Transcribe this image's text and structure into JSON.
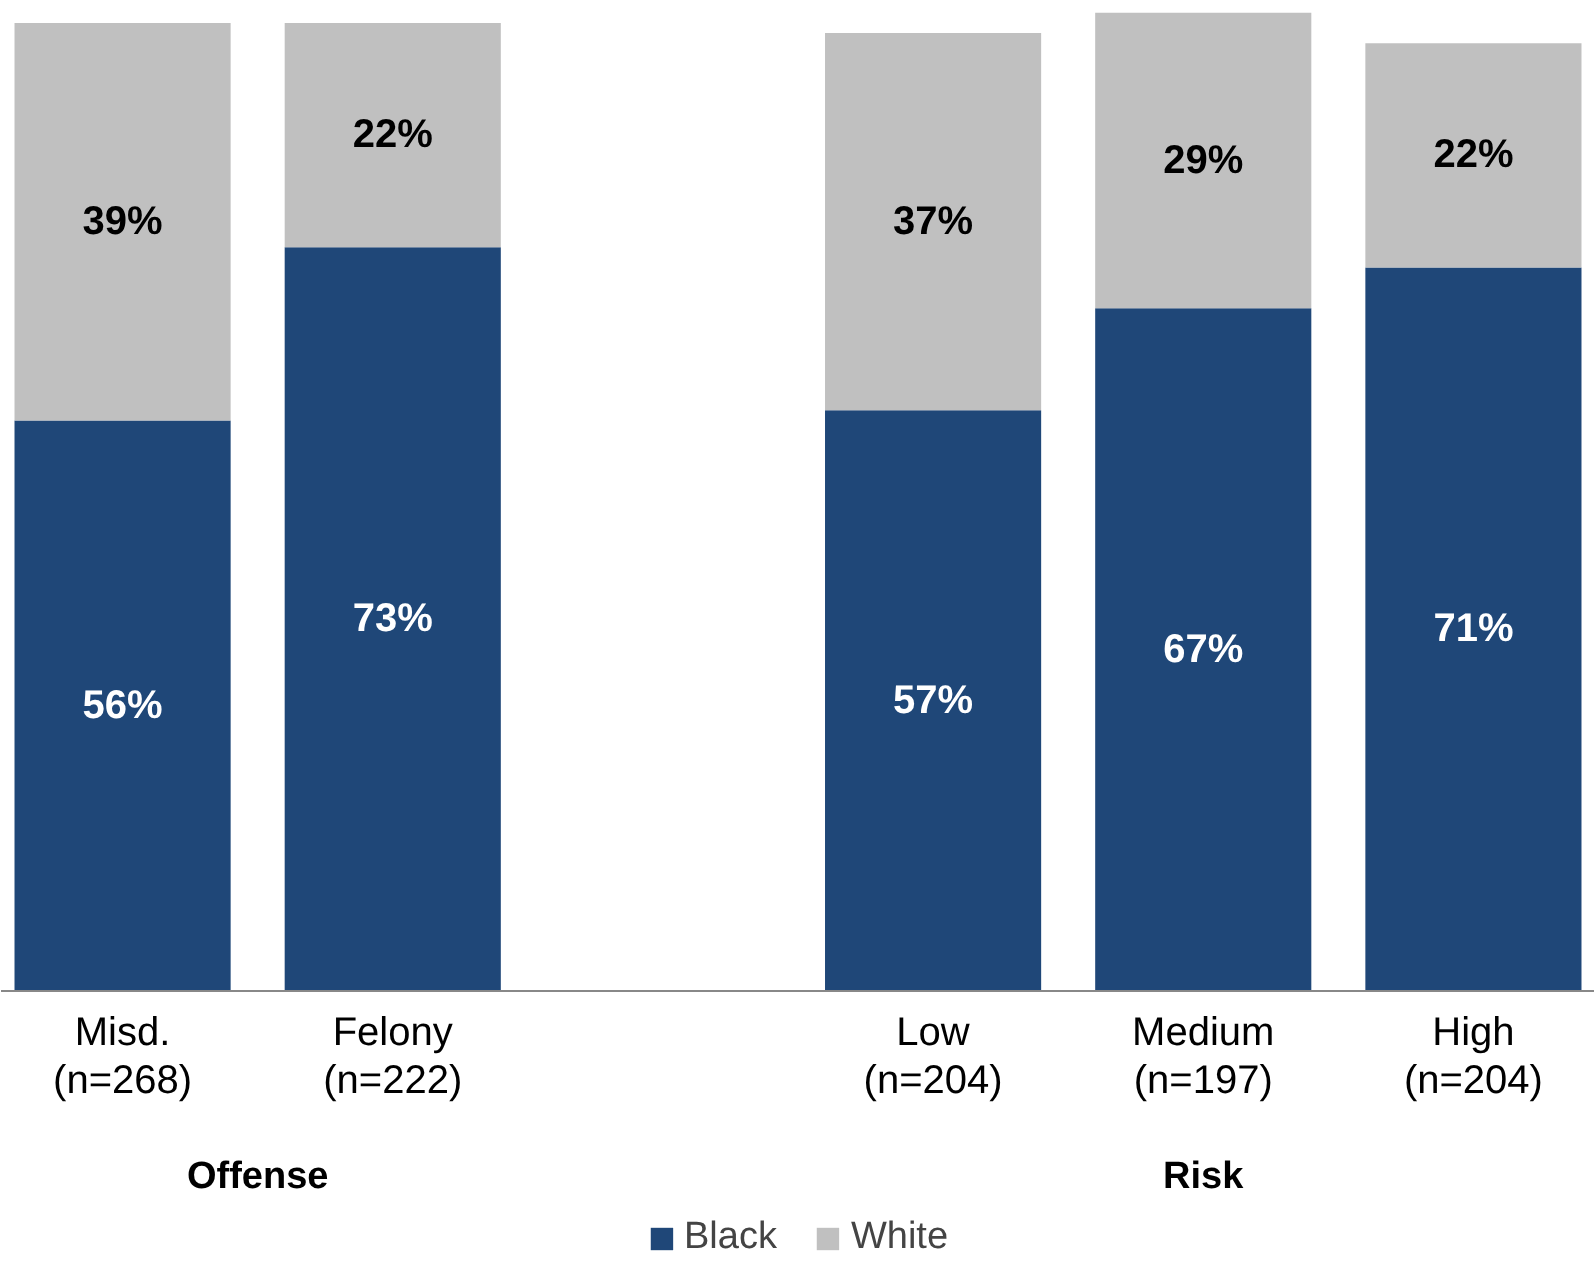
{
  "chart_data": {
    "type": "bar",
    "stacked": true,
    "legend": "bottom",
    "grid": false,
    "categories": [
      "Misd.\n(n=268)",
      "Felony\n(n=222)",
      null,
      "Low\n(n=204)",
      "Medium\n(n=197)",
      "High\n(n=204)"
    ],
    "series": [
      {
        "name": "Black",
        "color": "#1f4778",
        "values": [
          56,
          73,
          null,
          57,
          67,
          71
        ],
        "value_labels": [
          "56%",
          "73%",
          null,
          "57%",
          "67%",
          "71%"
        ]
      },
      {
        "name": "White",
        "color": "#c0c0c0",
        "values": [
          39,
          22,
          null,
          37,
          29,
          22
        ],
        "value_labels": [
          "39%",
          "22%",
          null,
          "37%",
          "29%",
          "22%"
        ]
      }
    ],
    "annotations": [
      "Offense",
      "Risk"
    ]
  }
}
